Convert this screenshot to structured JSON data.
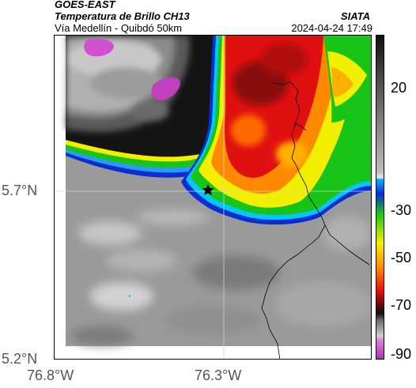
{
  "header": {
    "satellite": "GOES-EAST",
    "product": "Temperatura de Brillo CH13",
    "route": "Vía Medellín - Quibdó 50km",
    "org": "SIATA",
    "datetime": "2024-04-24 17:49"
  },
  "map": {
    "lat_labels": [
      "5.7°N",
      "5.2°N"
    ],
    "lon_labels": [
      "76.8°W",
      "76.3°W"
    ],
    "marker": "star-marker"
  },
  "colorbar": {
    "ticks": [
      "20",
      "-30",
      "-50",
      "-70",
      "-90"
    ],
    "colors": {
      "magenta": "#c040c0",
      "black": "#111111",
      "red": "#e01010",
      "orange": "#ff8a00",
      "yellow": "#f2f000",
      "green": "#19c419",
      "blue": "#0a2fd0",
      "cyan": "#00b4ff",
      "gray": "#8a8a8a"
    }
  }
}
